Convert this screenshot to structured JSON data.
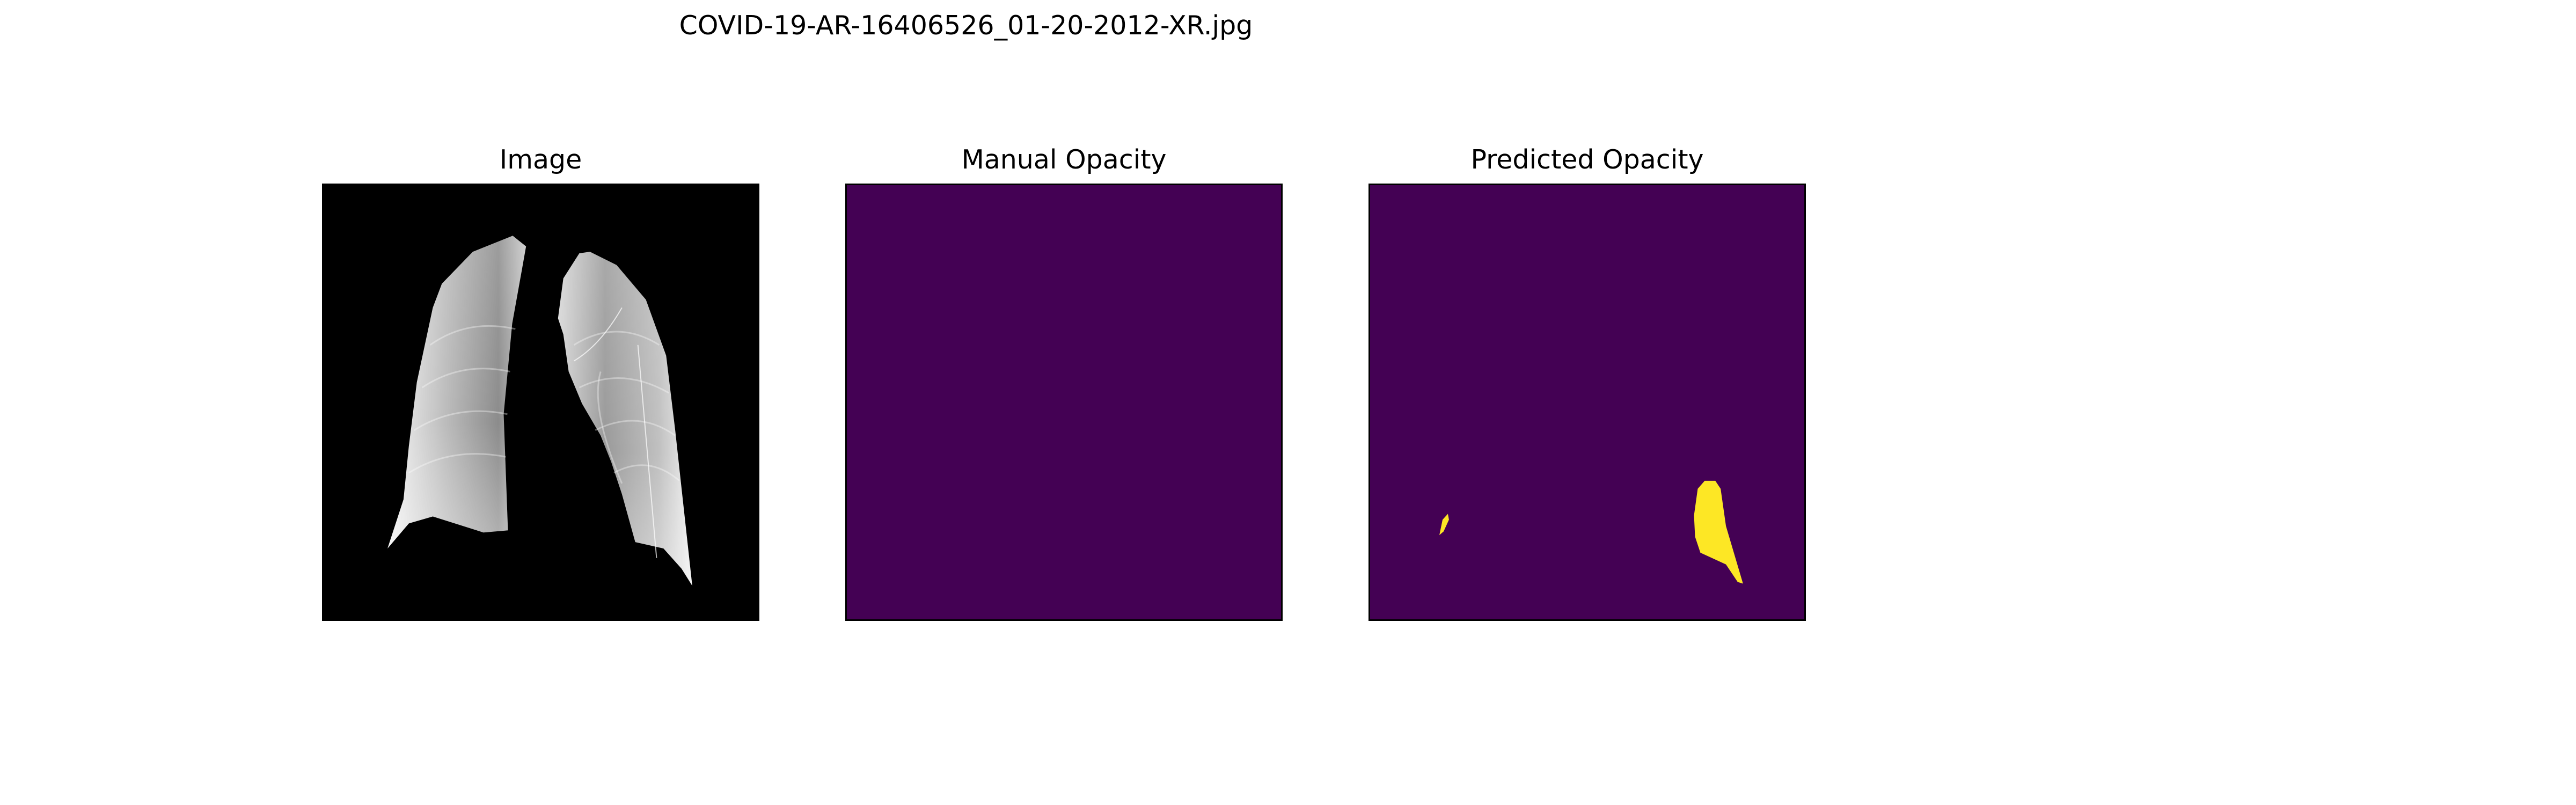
{
  "figure": {
    "title": "COVID-19-AR-16406526_01-20-2012-XR.jpg"
  },
  "panels": [
    {
      "title": "Image",
      "content": "chest x-ray lung region"
    },
    {
      "title": "Manual Opacity",
      "content": "mask (empty)"
    },
    {
      "title": "Predicted Opacity",
      "content": "mask with opacity regions"
    }
  ],
  "colors": {
    "mask_background": "#440154",
    "mask_foreground": "#fde725",
    "xray_background": "#000000",
    "figure_background": "#ffffff"
  }
}
